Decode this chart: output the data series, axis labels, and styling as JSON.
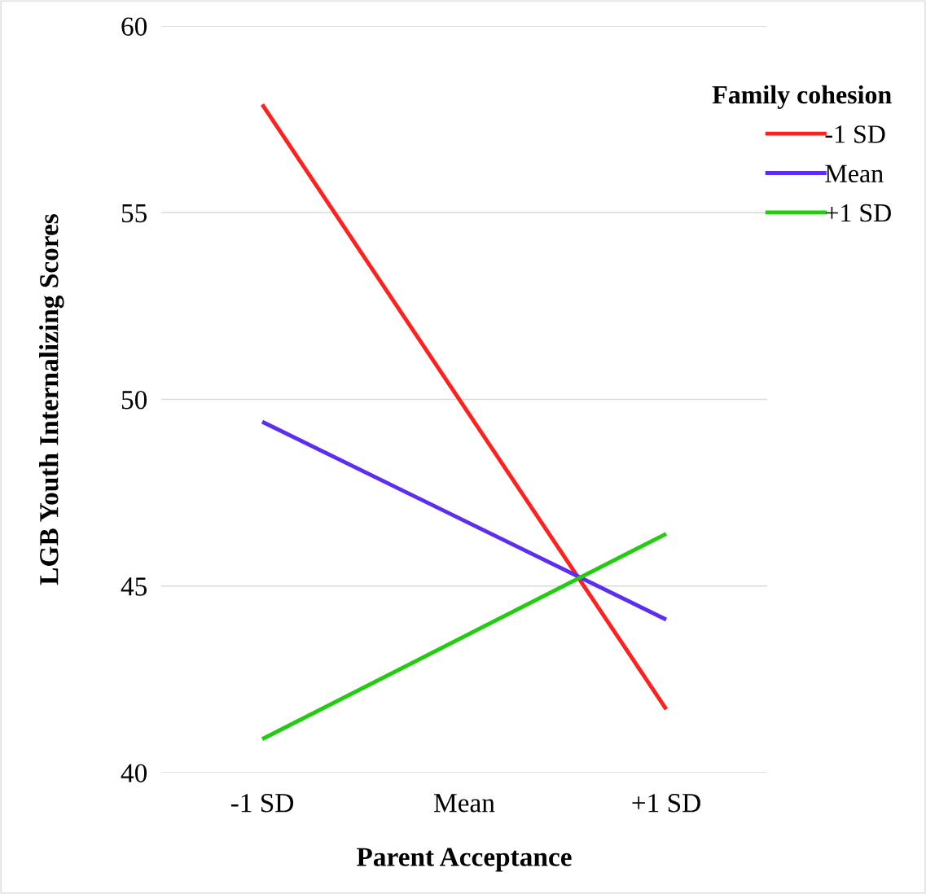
{
  "chart_data": {
    "type": "line",
    "xlabel": "Parent Acceptance",
    "ylabel": "LGB Youth Internalizing Scores",
    "legend_title": "Family cohesion",
    "categories": [
      "-1 SD",
      "Mean",
      "+1 SD"
    ],
    "series": [
      {
        "name": "-1 SD",
        "color": "#ff2020",
        "values": [
          57.9,
          null,
          41.7
        ]
      },
      {
        "name": "Mean",
        "color": "#5b2ef0",
        "values": [
          49.4,
          null,
          44.1
        ]
      },
      {
        "name": "+1 SD",
        "color": "#22cc0f",
        "values": [
          40.9,
          null,
          46.4
        ]
      }
    ],
    "ylim": [
      40,
      60
    ],
    "yticks": [
      40,
      45,
      50,
      55,
      60
    ],
    "grid": "y",
    "legend": "right",
    "marker": "none",
    "line_style": "solid"
  }
}
